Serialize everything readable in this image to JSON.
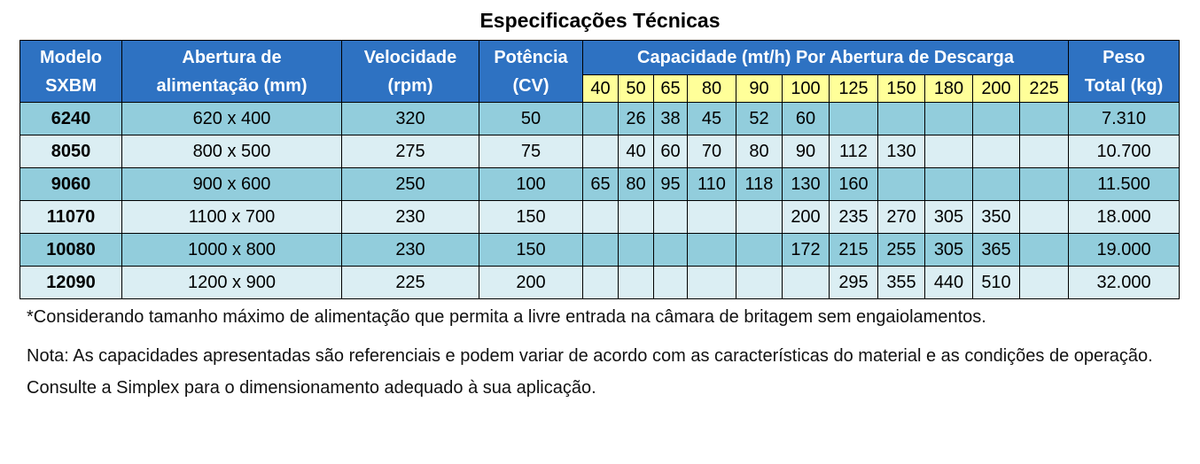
{
  "title": "Especificações Técnicas",
  "table": {
    "header": [
      [
        "Modelo",
        "SXBM"
      ],
      [
        "Abertura de",
        "alimentação (mm)"
      ],
      [
        "Velocidade",
        "(rpm)"
      ],
      [
        "Potência",
        "(CV)"
      ],
      "Capacidade (mt/h) Por Abertura de Descarga",
      [
        "Peso",
        "Total (kg)"
      ]
    ],
    "openings": [
      40,
      50,
      65,
      80,
      90,
      100,
      125,
      150,
      180,
      200,
      225
    ],
    "rows": [
      {
        "model": "6240",
        "opening": "620 x 400",
        "speed": 320,
        "power": 50,
        "capacity": [
          null,
          26,
          38,
          45,
          52,
          60,
          null,
          null,
          null,
          null,
          null
        ],
        "weight": "7.310"
      },
      {
        "model": "8050",
        "opening": "800 x 500",
        "speed": 275,
        "power": 75,
        "capacity": [
          null,
          40,
          60,
          70,
          80,
          90,
          112,
          130,
          null,
          null,
          null
        ],
        "weight": "10.700"
      },
      {
        "model": "9060",
        "opening": "900 x 600",
        "speed": 250,
        "power": 100,
        "capacity": [
          65,
          80,
          95,
          110,
          118,
          130,
          160,
          null,
          null,
          null,
          null
        ],
        "weight": "11.500"
      },
      {
        "model": "11070",
        "opening": "1100 x 700",
        "speed": 230,
        "power": 150,
        "capacity": [
          null,
          null,
          null,
          null,
          null,
          200,
          235,
          270,
          305,
          350,
          null
        ],
        "weight": "18.000"
      },
      {
        "model": "10080",
        "opening": "1000 x 800",
        "speed": 230,
        "power": 150,
        "capacity": [
          null,
          null,
          null,
          null,
          null,
          172,
          215,
          255,
          305,
          365,
          null
        ],
        "weight": "19.000"
      },
      {
        "model": "12090",
        "opening": "1200 x 900",
        "speed": 225,
        "power": 200,
        "capacity": [
          null,
          null,
          null,
          null,
          null,
          null,
          295,
          355,
          440,
          510,
          null
        ],
        "weight": "32.000"
      }
    ]
  },
  "notes": [
    "*Considerando tamanho máximo de alimentação que permita a livre entrada na câmara de britagem sem engaiolamentos.",
    "Nota: As capacidades apresentadas são referenciais e podem variar de acordo com as características do material e as condições de operação. Consulte a Simplex para o dimensionamento adequado à sua aplicação."
  ]
}
